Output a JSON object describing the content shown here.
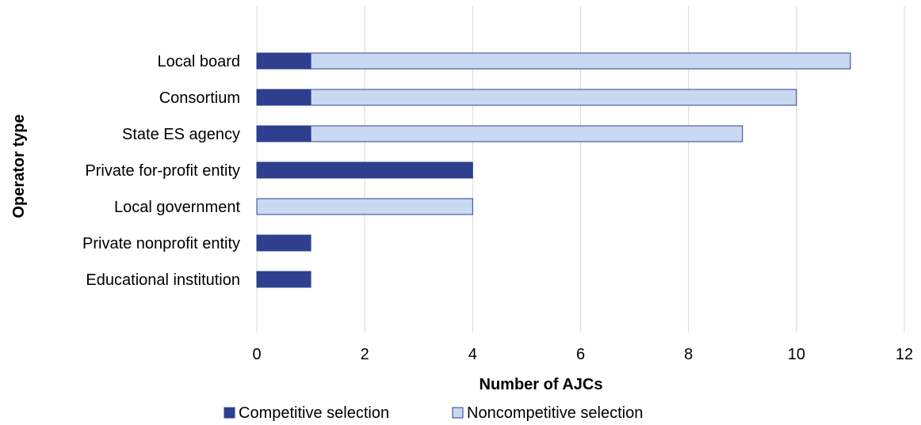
{
  "chart_data": {
    "type": "bar",
    "orientation": "horizontal",
    "stacked": true,
    "title": "",
    "xlabel": "Number of AJCs",
    "ylabel": "Operator type",
    "xlim": [
      0,
      12
    ],
    "xticks": [
      0,
      2,
      4,
      6,
      8,
      10,
      12
    ],
    "grid": true,
    "legend_position": "bottom",
    "categories": [
      "Local board",
      "Consortium",
      "State ES agency",
      "Private for-profit entity",
      "Local government",
      "Private nonprofit entity",
      "Educational institution"
    ],
    "series": [
      {
        "name": "Competitive selection",
        "color": "#2e3f8f",
        "values": [
          1,
          1,
          1,
          4,
          0,
          1,
          1
        ]
      },
      {
        "name": "Noncompetitive selection",
        "color": "#c9d9f2",
        "values": [
          10,
          9,
          8,
          0,
          4,
          0,
          0
        ]
      }
    ],
    "bar_outline_color": "#2e3f8f"
  }
}
